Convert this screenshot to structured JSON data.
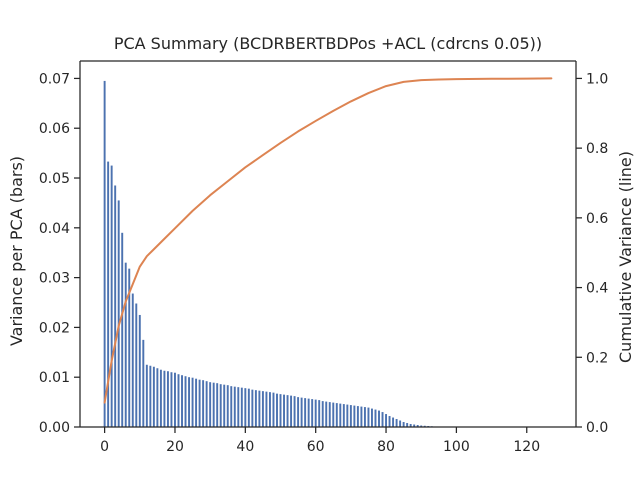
{
  "chart_data": {
    "type": "bar",
    "title": "PCA Summary (BCDRBERTBDPos +ACL (cdrcns 0.05))",
    "ylabel": "Variance per PCA (bars)",
    "y2label": "Cumulative Variance (line)",
    "xlabel": "",
    "xlim": [
      -7,
      134
    ],
    "ylim": [
      0,
      0.0735
    ],
    "y2lim": [
      0,
      1.05
    ],
    "xticks": [
      0,
      20,
      40,
      60,
      80,
      100,
      120
    ],
    "yticks": [
      0.0,
      0.01,
      0.02,
      0.03,
      0.04,
      0.05,
      0.06,
      0.07
    ],
    "y2ticks": [
      0.0,
      0.2,
      0.4,
      0.6,
      0.8,
      1.0
    ],
    "xtick_labels": [
      "0",
      "20",
      "40",
      "60",
      "80",
      "100",
      "120"
    ],
    "ytick_labels": [
      "0.00",
      "0.01",
      "0.02",
      "0.03",
      "0.04",
      "0.05",
      "0.06",
      "0.07"
    ],
    "y2tick_labels": [
      "0.0",
      "0.2",
      "0.4",
      "0.6",
      "0.8",
      "1.0"
    ],
    "grid": false,
    "colors": {
      "bars": "#4c72b0",
      "line": "#dd8452",
      "axis": "#262626"
    },
    "series": [
      {
        "kind": "bar",
        "values": [
          0.0695,
          0.0533,
          0.0525,
          0.0485,
          0.0455,
          0.039,
          0.033,
          0.0318,
          0.0268,
          0.0248,
          0.0225,
          0.0175,
          0.0125,
          0.0123,
          0.0121,
          0.0118,
          0.0115,
          0.0113,
          0.0112,
          0.011,
          0.0109,
          0.0106,
          0.0104,
          0.0102,
          0.01,
          0.0099,
          0.0097,
          0.0095,
          0.0094,
          0.0092,
          0.009,
          0.0089,
          0.0088,
          0.0086,
          0.0085,
          0.0084,
          0.0082,
          0.0081,
          0.008,
          0.0079,
          0.0078,
          0.0077,
          0.0075,
          0.0074,
          0.0073,
          0.0072,
          0.0071,
          0.007,
          0.0069,
          0.0067,
          0.0066,
          0.0065,
          0.0064,
          0.0063,
          0.0062,
          0.006,
          0.0059,
          0.0058,
          0.0057,
          0.0056,
          0.0055,
          0.0054,
          0.0052,
          0.0051,
          0.005,
          0.0049,
          0.0048,
          0.0047,
          0.0046,
          0.0045,
          0.0044,
          0.0043,
          0.0042,
          0.0041,
          0.004,
          0.0039,
          0.0037,
          0.0035,
          0.0033,
          0.003,
          0.0026,
          0.0022,
          0.0019,
          0.0016,
          0.0013,
          0.001,
          0.0008,
          0.0006,
          0.0005,
          0.0004,
          0.0003,
          0.00025,
          0.0002,
          0.00015,
          0.0001,
          8e-05,
          6e-05,
          5e-05,
          4e-05,
          3e-05,
          2e-05,
          2e-05,
          1e-05,
          1e-05,
          1e-05,
          1e-05,
          0.0,
          0.0,
          0.0,
          0.0,
          0.0,
          0.0,
          0.0,
          0.0,
          0.0,
          0.0,
          0.0,
          0.0,
          0.0,
          0.0,
          0.0,
          0.0,
          0.0,
          0.0,
          0.0,
          0.0,
          0.0,
          0.0
        ]
      },
      {
        "kind": "line",
        "axis": "right",
        "x": [
          0,
          2,
          4,
          6,
          8,
          10,
          12,
          14,
          17,
          20,
          25,
          30,
          35,
          40,
          45,
          50,
          55,
          60,
          65,
          70,
          75,
          80,
          85,
          90,
          95,
          100,
          110,
          120,
          127
        ],
        "values": [
          0.07,
          0.19,
          0.29,
          0.36,
          0.41,
          0.46,
          0.49,
          0.51,
          0.54,
          0.57,
          0.62,
          0.665,
          0.705,
          0.745,
          0.78,
          0.815,
          0.848,
          0.878,
          0.907,
          0.934,
          0.958,
          0.978,
          0.99,
          0.995,
          0.997,
          0.998,
          0.999,
          0.9995,
          1.0
        ]
      }
    ]
  }
}
